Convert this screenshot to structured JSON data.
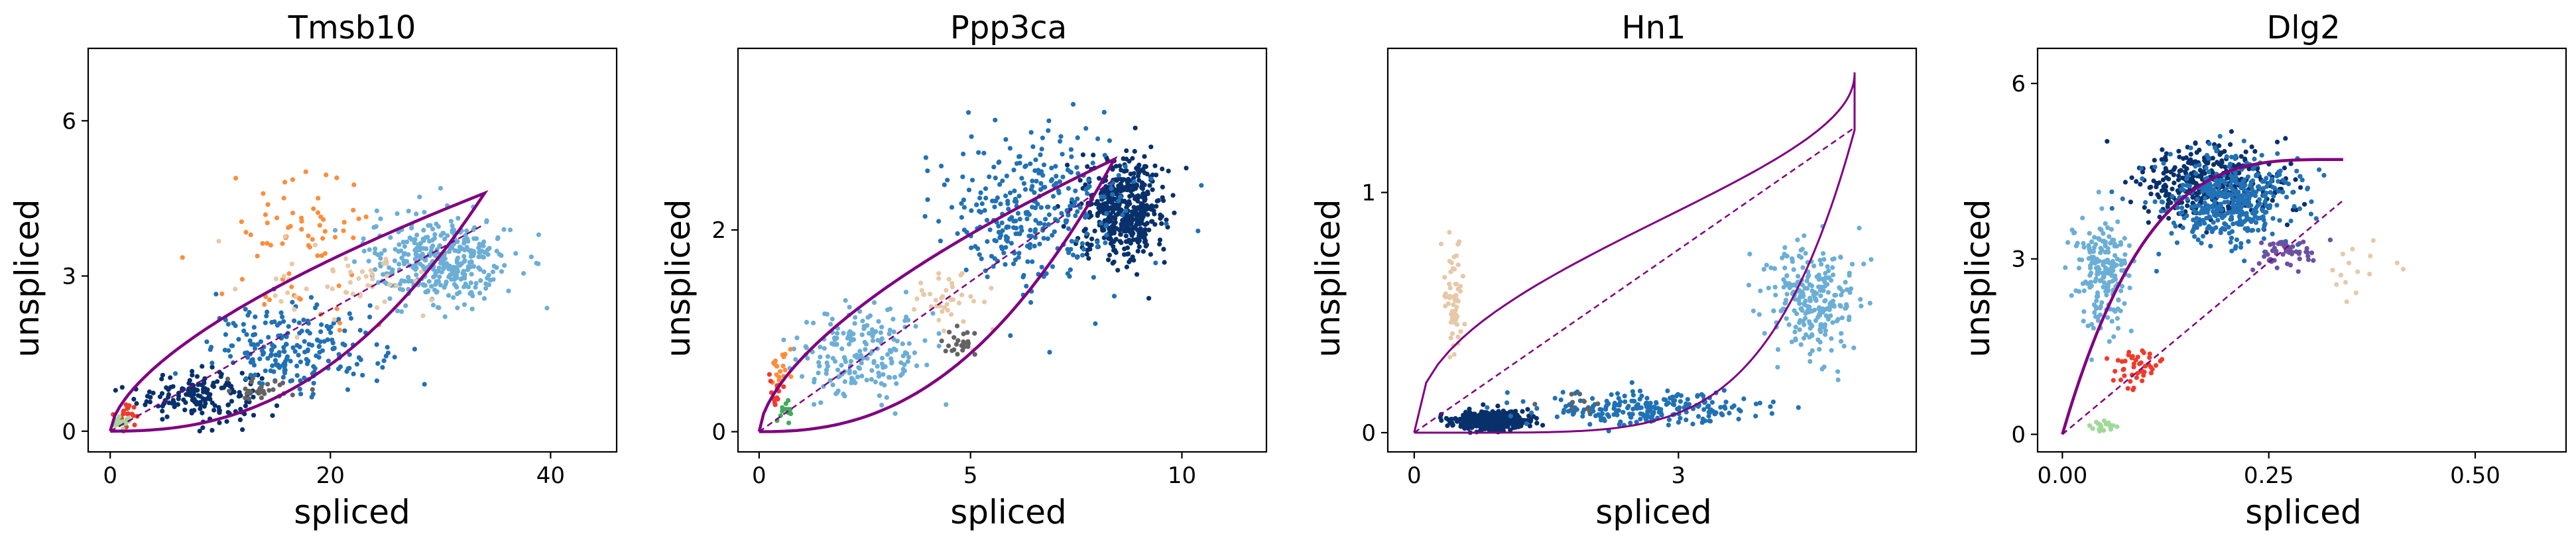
{
  "panels": [
    {
      "title": "Tmsb10",
      "xlabel": "spliced",
      "ylabel": "unspliced",
      "xlim": [
        -2,
        46
      ],
      "ylim": [
        -0.4,
        7.4
      ],
      "xticks": [
        0,
        20,
        40
      ],
      "xtick_labels": [
        "0",
        "20",
        "40"
      ],
      "yticks": [
        0,
        3,
        6
      ],
      "ytick_labels": [
        "0",
        "3",
        "6"
      ]
    },
    {
      "title": "Ppp3ca",
      "xlabel": "spliced",
      "ylabel": "unspliced",
      "xlim": [
        -0.5,
        12
      ],
      "ylim": [
        -0.2,
        3.8
      ],
      "xticks": [
        0,
        5,
        10
      ],
      "xtick_labels": [
        "0",
        "5",
        "10"
      ],
      "yticks": [
        0,
        2
      ],
      "ytick_labels": [
        "0",
        "2"
      ]
    },
    {
      "title": "Hn1",
      "xlabel": "spliced",
      "ylabel": "unspliced",
      "xlim": [
        -0.3,
        5.7
      ],
      "ylim": [
        -0.08,
        1.6
      ],
      "xticks": [
        0,
        3
      ],
      "xtick_labels": [
        "0",
        "3"
      ],
      "yticks": [
        0,
        1
      ],
      "ytick_labels": [
        "0",
        "1"
      ]
    },
    {
      "title": "Dlg2",
      "xlabel": "spliced",
      "ylabel": "unspliced",
      "xlim": [
        -0.03,
        0.61
      ],
      "ylim": [
        -0.3,
        6.6
      ],
      "xticks": [
        0.0,
        0.25,
        0.5
      ],
      "xtick_labels": [
        "0.00",
        "0.25",
        "0.50"
      ],
      "yticks": [
        0,
        3,
        6
      ],
      "ytick_labels": [
        "0",
        "3",
        "6"
      ]
    }
  ],
  "chart_data": [
    {
      "type": "scatter",
      "title": "Tmsb10",
      "xlabel": "spliced",
      "ylabel": "unspliced",
      "xlim": [
        -2,
        46
      ],
      "ylim": [
        -0.4,
        7.4
      ],
      "grid": false,
      "phase_curve": {
        "x_max": 34,
        "y_max": 4.6,
        "kind": "loop",
        "color": "#800080"
      },
      "steady_state_line": {
        "x": [
          0,
          34
        ],
        "y": [
          0,
          4.0
        ],
        "style": "dashed",
        "color": "#800080"
      },
      "point_groups": [
        {
          "color": "#08306b",
          "n": 170,
          "center": [
            8,
            0.7
          ],
          "spread": [
            5,
            0.45
          ]
        },
        {
          "color": "#2171b5",
          "n": 220,
          "center": [
            17,
            1.6
          ],
          "spread": [
            7,
            0.7
          ]
        },
        {
          "color": "#6baed6",
          "n": 380,
          "center": [
            30,
            3.3
          ],
          "spread": [
            6,
            0.8
          ]
        },
        {
          "color": "#fd8d3c",
          "n": 70,
          "center": [
            17,
            3.6
          ],
          "spread": [
            6,
            1.4
          ]
        },
        {
          "color": "#e6c9a8",
          "n": 50,
          "center": [
            22,
            2.8
          ],
          "spread": [
            7,
            0.6
          ]
        },
        {
          "color": "#636363",
          "n": 30,
          "center": [
            14,
            0.8
          ],
          "spread": [
            3,
            0.2
          ]
        },
        {
          "color": "#ef3b2c",
          "n": 25,
          "center": [
            1.5,
            0.3
          ],
          "spread": [
            1.2,
            0.25
          ]
        },
        {
          "color": "#a1d99b",
          "n": 20,
          "center": [
            1,
            0.15
          ],
          "spread": [
            0.8,
            0.1
          ]
        }
      ]
    },
    {
      "type": "scatter",
      "title": "Ppp3ca",
      "xlabel": "spliced",
      "ylabel": "unspliced",
      "xlim": [
        -0.5,
        12
      ],
      "ylim": [
        -0.2,
        3.8
      ],
      "grid": false,
      "phase_curve": {
        "x_max": 8.4,
        "y_max": 2.7,
        "kind": "loop",
        "color": "#800080"
      },
      "steady_state_line": {
        "x": [
          0,
          8.4
        ],
        "y": [
          0,
          2.5
        ],
        "style": "dashed",
        "color": "#800080"
      },
      "point_groups": [
        {
          "color": "#08306b",
          "n": 480,
          "center": [
            8.6,
            2.2
          ],
          "spread": [
            0.9,
            0.45
          ]
        },
        {
          "color": "#2171b5",
          "n": 320,
          "center": [
            6.5,
            2.2
          ],
          "spread": [
            1.9,
            0.7
          ]
        },
        {
          "color": "#6baed6",
          "n": 200,
          "center": [
            2.5,
            0.8
          ],
          "spread": [
            1.4,
            0.4
          ]
        },
        {
          "color": "#e6c9a8",
          "n": 40,
          "center": [
            4.5,
            1.3
          ],
          "spread": [
            0.9,
            0.3
          ]
        },
        {
          "color": "#636363",
          "n": 25,
          "center": [
            4.8,
            0.85
          ],
          "spread": [
            0.4,
            0.15
          ]
        },
        {
          "color": "#fd8d3c",
          "n": 20,
          "center": [
            0.5,
            0.6
          ],
          "spread": [
            0.2,
            0.2
          ]
        },
        {
          "color": "#ef3b2c",
          "n": 15,
          "center": [
            0.4,
            0.4
          ],
          "spread": [
            0.15,
            0.15
          ]
        },
        {
          "color": "#41ab5d",
          "n": 15,
          "center": [
            0.6,
            0.2
          ],
          "spread": [
            0.2,
            0.1
          ]
        }
      ]
    },
    {
      "type": "scatter",
      "title": "Hn1",
      "xlabel": "spliced",
      "ylabel": "unspliced",
      "xlim": [
        -0.3,
        5.7
      ],
      "ylim": [
        -0.08,
        1.6
      ],
      "grid": false,
      "phase_curve": {
        "x_max": 5.0,
        "y_max": 1.5,
        "kind": "lens",
        "color": "#800080"
      },
      "steady_state_line": {
        "x": [
          0,
          5.0
        ],
        "y": [
          0,
          1.27
        ],
        "style": "dashed",
        "color": "#800080"
      },
      "point_groups": [
        {
          "color": "#08306b",
          "n": 420,
          "center": [
            0.9,
            0.05
          ],
          "spread": [
            0.4,
            0.035
          ]
        },
        {
          "color": "#2171b5",
          "n": 240,
          "center": [
            2.6,
            0.1
          ],
          "spread": [
            1.1,
            0.06
          ]
        },
        {
          "color": "#6baed6",
          "n": 260,
          "center": [
            4.5,
            0.55
          ],
          "spread": [
            0.45,
            0.2
          ]
        },
        {
          "color": "#e6c9a8",
          "n": 60,
          "center": [
            0.45,
            0.55
          ],
          "spread": [
            0.1,
            0.2
          ]
        },
        {
          "color": "#636363",
          "n": 10,
          "center": [
            1.8,
            0.12
          ],
          "spread": [
            0.5,
            0.05
          ]
        }
      ]
    },
    {
      "type": "scatter",
      "title": "Dlg2",
      "xlabel": "spliced",
      "ylabel": "unspliced",
      "xlim": [
        -0.03,
        0.61
      ],
      "ylim": [
        -0.3,
        6.6
      ],
      "grid": false,
      "phase_curve": {
        "x_max": 0.34,
        "y_max": 4.7,
        "kind": "saturating",
        "color": "#800080"
      },
      "steady_state_line": {
        "x": [
          0,
          0.34
        ],
        "y": [
          0,
          4.0
        ],
        "style": "dashed",
        "color": "#800080"
      },
      "point_groups": [
        {
          "color": "#08306b",
          "n": 400,
          "center": [
            0.18,
            4.3
          ],
          "spread": [
            0.08,
            0.6
          ]
        },
        {
          "color": "#2171b5",
          "n": 400,
          "center": [
            0.2,
            4.0
          ],
          "spread": [
            0.08,
            0.7
          ]
        },
        {
          "color": "#6baed6",
          "n": 200,
          "center": [
            0.05,
            2.8
          ],
          "spread": [
            0.03,
            0.9
          ]
        },
        {
          "color": "#6a51a3",
          "n": 50,
          "center": [
            0.27,
            3.1
          ],
          "spread": [
            0.04,
            0.3
          ]
        },
        {
          "color": "#ef3b2c",
          "n": 45,
          "center": [
            0.09,
            1.1
          ],
          "spread": [
            0.03,
            0.35
          ]
        },
        {
          "color": "#a1d99b",
          "n": 20,
          "center": [
            0.05,
            0.15
          ],
          "spread": [
            0.015,
            0.08
          ]
        },
        {
          "color": "#e6c9a8",
          "n": 15,
          "center": [
            0.35,
            2.8
          ],
          "spread": [
            0.05,
            0.4
          ]
        }
      ]
    }
  ]
}
